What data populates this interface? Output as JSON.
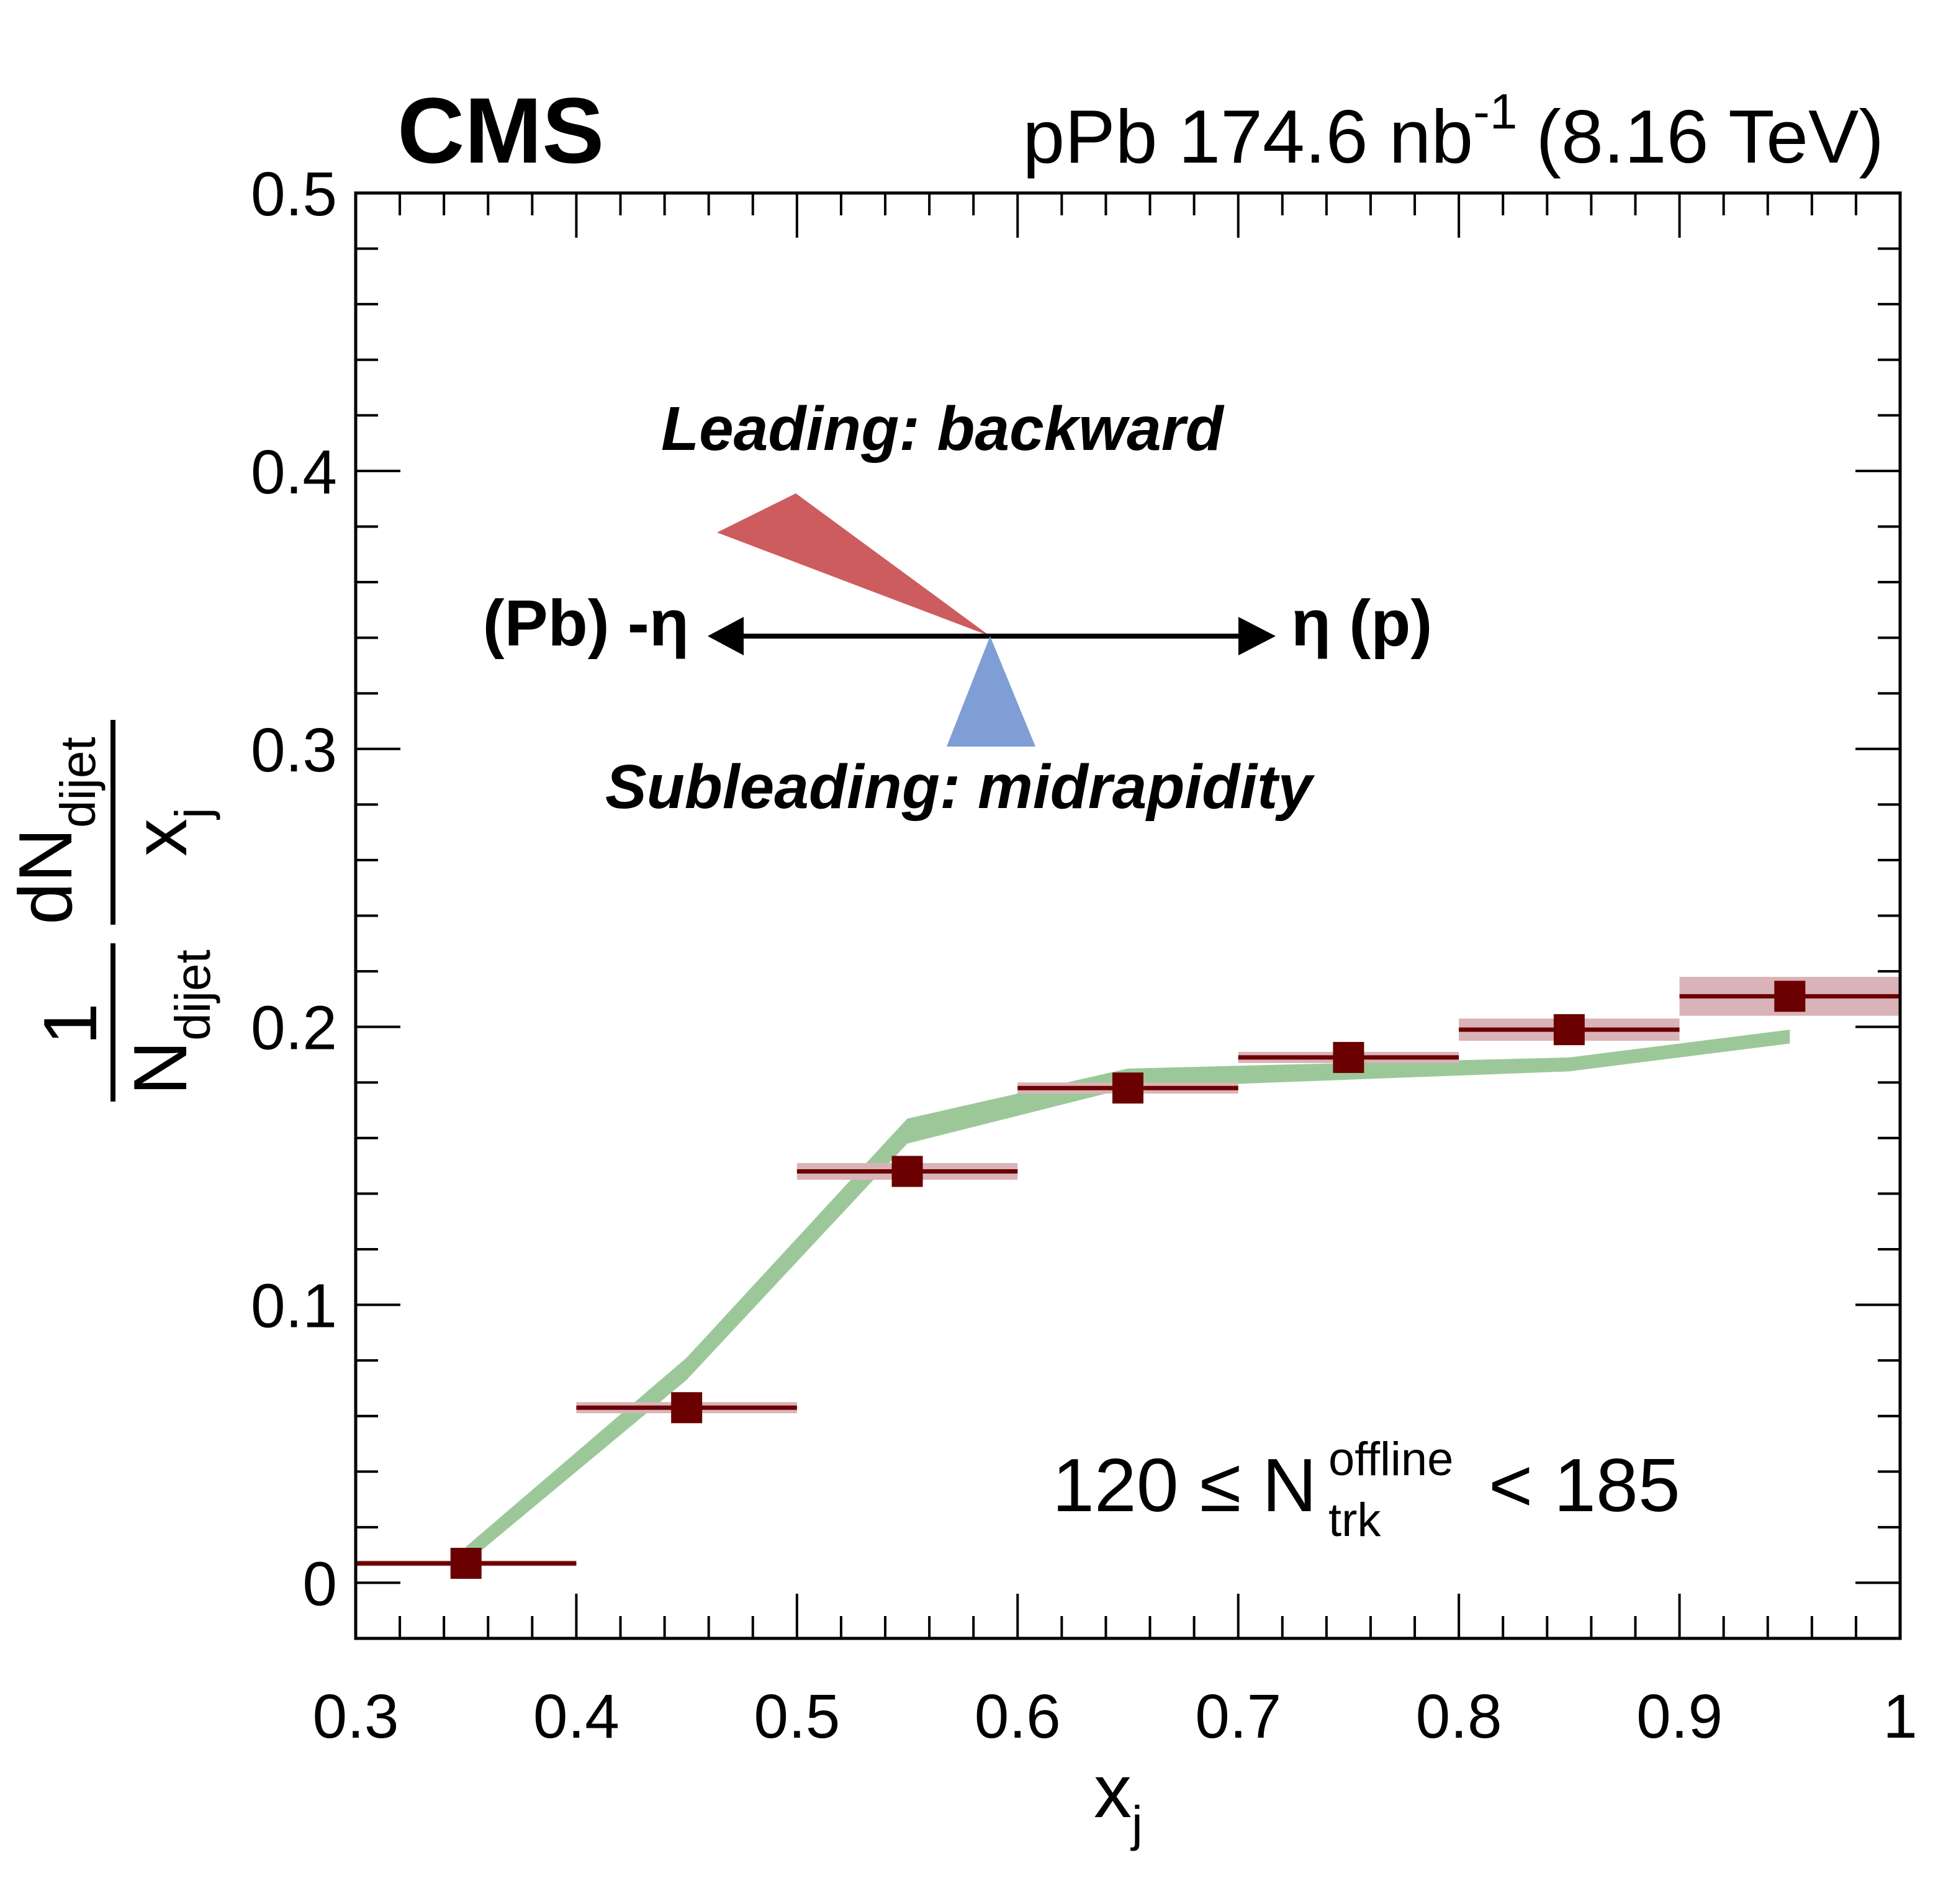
{
  "header": {
    "experiment": "CMS",
    "lumi_prefix": "pPb 174.6 nb",
    "lumi_exp": "-1",
    "energy": "(8.16 TeV)"
  },
  "chart_data": {
    "type": "scatter",
    "xlim": [
      0.3,
      1.0
    ],
    "ylim": [
      -0.02,
      0.5
    ],
    "x_ticks": [
      "0.3",
      "0.4",
      "0.5",
      "0.6",
      "0.7",
      "0.8",
      "0.9",
      "1"
    ],
    "y_ticks": [
      "0",
      "0.1",
      "0.2",
      "0.3",
      "0.4",
      "0.5"
    ],
    "x_tick_values": [
      0.3,
      0.4,
      0.5,
      0.6,
      0.7,
      0.8,
      0.9,
      1.0
    ],
    "y_tick_values": [
      0,
      0.1,
      0.2,
      0.3,
      0.4,
      0.5
    ],
    "xlabel": {
      "main": "x",
      "sub": "j"
    },
    "ylabel": {
      "frac1_num": "1",
      "frac1_den_main": "N",
      "frac1_den_sub": "dijet",
      "frac2_num_main": "dN",
      "frac2_num_sub": "dijet",
      "frac2_den_main": "x",
      "frac2_den_sub": "j"
    },
    "data_points": {
      "x": [
        0.35,
        0.45,
        0.55,
        0.65,
        0.75,
        0.85,
        0.95
      ],
      "y": [
        0.007,
        0.063,
        0.148,
        0.178,
        0.189,
        0.199,
        0.211
      ],
      "x_low": [
        0.3,
        0.4,
        0.5,
        0.6,
        0.7,
        0.8,
        0.9
      ],
      "x_high": [
        0.4,
        0.5,
        0.6,
        0.7,
        0.8,
        0.9,
        1.0
      ],
      "syst": [
        0.001,
        0.002,
        0.003,
        0.002,
        0.002,
        0.004,
        0.007
      ],
      "color": "#6b0000",
      "syst_color": "#d9b3b8"
    },
    "model_band": {
      "x": [
        0.35,
        0.45,
        0.55,
        0.65,
        0.75,
        0.85,
        0.95
      ],
      "y_low": [
        0.007,
        0.073,
        0.158,
        0.178,
        0.181,
        0.184,
        0.194
      ],
      "y_high": [
        0.013,
        0.081,
        0.167,
        0.185,
        0.187,
        0.189,
        0.199
      ],
      "color": "#9cc899"
    },
    "annotations": {
      "leading": "Leading: backward",
      "leading_color": "#cd5c5f",
      "subleading": "Subleading: midrapidity",
      "subleading_color": "#7f9ed5",
      "left_label": "(Pb) -η",
      "right_label": "η (p)",
      "mult_prefix": "120 ≤ N",
      "mult_sup": "offline",
      "mult_sub": "trk",
      "mult_suffix": "< 185"
    }
  }
}
